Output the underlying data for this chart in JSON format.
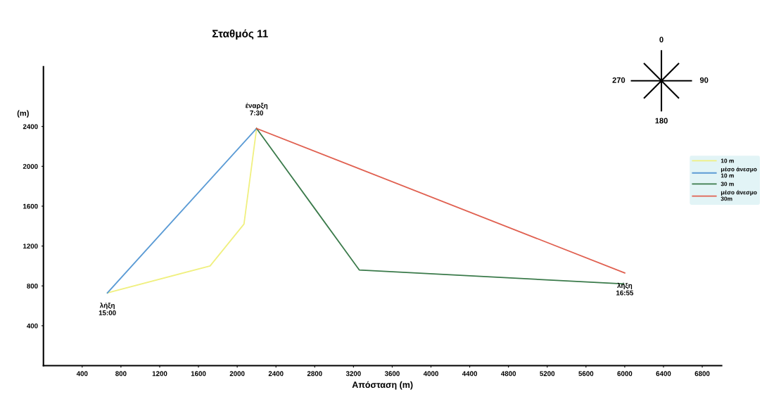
{
  "chart_data": {
    "type": "line",
    "title": "Σταθμός 11",
    "xlabel": "Απόσταση (m)",
    "ylabel": "(m)",
    "series": [
      {
        "name": "10 m",
        "color": "#f0f080",
        "x": [
          660,
          1720,
          2070,
          2200
        ],
        "values": [
          730,
          1000,
          1420,
          2380
        ]
      },
      {
        "name": "μέσο άνεσμο\n10 m",
        "color": "#5b9bd5",
        "x": [
          660,
          2200
        ],
        "values": [
          730,
          2380
        ]
      },
      {
        "name": "30 m",
        "color": "#3a7a4a",
        "x": [
          2200,
          2790,
          3260,
          5990
        ],
        "values": [
          2380,
          1590,
          960,
          820
        ]
      },
      {
        "name": "μέσο άνεσμο\n30m",
        "color": "#e06050",
        "x": [
          2200,
          6000
        ],
        "values": [
          2380,
          930
        ]
      }
    ],
    "xlim": [
      0,
      7000
    ],
    "xticks": [
      400,
      800,
      1200,
      1600,
      2000,
      2400,
      2800,
      3200,
      3600,
      4000,
      4400,
      4800,
      5200,
      5600,
      6000,
      6400,
      6800
    ],
    "ylim": [
      0,
      3000
    ],
    "yticks": [
      400,
      800,
      1200,
      1600,
      2000,
      2400
    ],
    "grid": false,
    "legend": "right",
    "marker": "none",
    "line_style": "solid",
    "annotations": [
      {
        "text": "έναρξη\n7:30",
        "x": 2200,
        "y": 2380
      },
      {
        "text": "λήξη\n15:00",
        "x": 660,
        "y": 730
      },
      {
        "text": "λήξη\n16:55",
        "x": 6000,
        "y": 930
      },
      "0",
      "90",
      "180",
      "270"
    ]
  }
}
